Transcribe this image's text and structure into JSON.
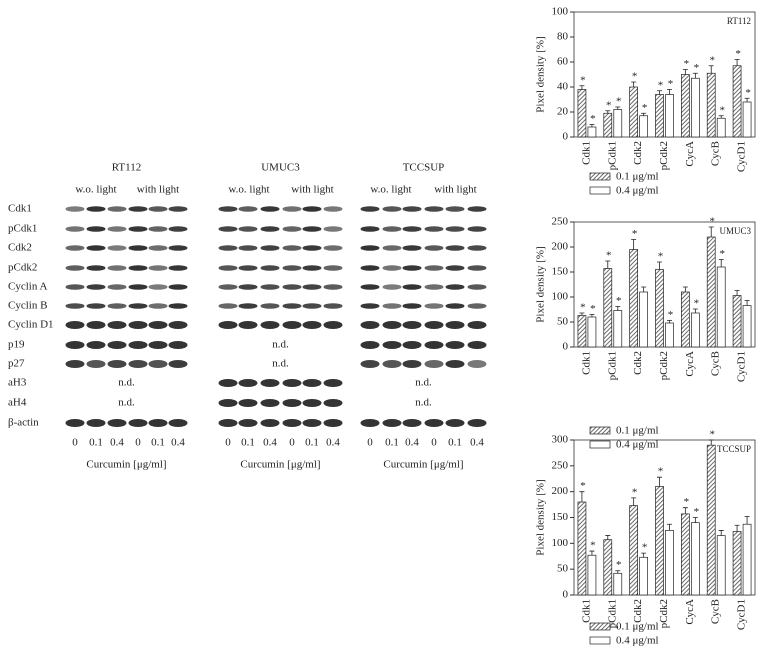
{
  "blot": {
    "row_labels": [
      "Cdk1",
      "pCdk1",
      "Cdk2",
      "pCdk2",
      "Cyclin A",
      "Cyclin B",
      "Cyclin D1",
      "p19",
      "p27",
      "aH3",
      "aH4",
      "β-actin"
    ],
    "panels": [
      {
        "title": "RT112",
        "conditions": [
          "w.o. light",
          "with light"
        ],
        "lanes": [
          "0",
          "0.1",
          "0.4",
          "0",
          "0.1",
          "0.4"
        ],
        "xlabel": "Curcumin [μg/ml]",
        "rows": [
          null,
          null,
          null,
          null,
          null,
          null,
          null,
          null,
          null,
          "n.d.",
          "n.d.",
          null
        ]
      },
      {
        "title": "UMUC3",
        "conditions": [
          "w.o. light",
          "with light"
        ],
        "lanes": [
          "0",
          "0.1",
          "0.4",
          "0",
          "0.1",
          "0.4"
        ],
        "xlabel": "Curcumin [μg/ml]",
        "rows": [
          null,
          null,
          null,
          null,
          null,
          null,
          null,
          "n.d.",
          "n.d.",
          null,
          null,
          null
        ]
      },
      {
        "title": "TCCSUP",
        "conditions": [
          "w.o. light",
          "with light"
        ],
        "lanes": [
          "0",
          "0.1",
          "0.4",
          "0",
          "0.1",
          "0.4"
        ],
        "xlabel": "Curcumin [μg/ml]",
        "rows": [
          null,
          null,
          null,
          null,
          null,
          null,
          null,
          null,
          null,
          "n.d.",
          "n.d.",
          null
        ]
      }
    ]
  },
  "chart_data": [
    {
      "type": "bar",
      "title": "RT112",
      "ylabel": "Pixel density [%]",
      "categories": [
        "Cdk1",
        "pCdk1",
        "Cdk2",
        "pCdk2",
        "CycA",
        "CycB",
        "CycD1"
      ],
      "ylim": [
        0,
        100
      ],
      "yticks": [
        0,
        20,
        40,
        60,
        80,
        100
      ],
      "series": [
        {
          "name": "0.1 μg/ml",
          "color": "#6a6a6a",
          "values": [
            38,
            19,
            40,
            34,
            50,
            51,
            57
          ],
          "errors": [
            3,
            2,
            4,
            3,
            4,
            6,
            5
          ],
          "markers": [
            "*",
            "*",
            "*",
            "*",
            "*",
            "*",
            "*"
          ]
        },
        {
          "name": "0.4 μg/ml",
          "color": "#ffffff",
          "values": [
            8,
            22,
            17,
            34,
            47,
            15,
            28
          ],
          "errors": [
            2,
            2,
            2,
            4,
            4,
            2,
            3
          ],
          "markers": [
            "*",
            "*",
            "*",
            "*",
            "*",
            "*",
            "*"
          ]
        }
      ]
    },
    {
      "type": "bar",
      "title": "UMUC3",
      "ylabel": "Pixel density [%]",
      "categories": [
        "Cdk1",
        "pCdk1",
        "Cdk2",
        "pCdk2",
        "CycA",
        "CycB",
        "CycD1"
      ],
      "ylim": [
        0,
        250
      ],
      "yticks": [
        0,
        50,
        100,
        150,
        200,
        250
      ],
      "series": [
        {
          "name": "0.1 μg/ml",
          "color": "#6a6a6a",
          "values": [
            63,
            157,
            195,
            155,
            110,
            220,
            103
          ],
          "errors": [
            5,
            15,
            20,
            15,
            10,
            20,
            10
          ],
          "markers": [
            "*",
            "*",
            "*",
            "*",
            null,
            "*",
            null
          ]
        },
        {
          "name": "0.4 μg/ml",
          "color": "#ffffff",
          "values": [
            60,
            73,
            110,
            48,
            68,
            160,
            83
          ],
          "errors": [
            5,
            8,
            10,
            5,
            8,
            15,
            10
          ],
          "markers": [
            "*",
            "*",
            null,
            "*",
            "*",
            "*",
            null
          ]
        }
      ]
    },
    {
      "type": "bar",
      "title": "TCCSUP",
      "ylabel": "Pixel density [%]",
      "categories": [
        "Cdk1",
        "pCdk1",
        "Cdk2",
        "pCdk2",
        "CycA",
        "CycB",
        "CycD1"
      ],
      "ylim": [
        0,
        300
      ],
      "yticks": [
        0,
        50,
        100,
        150,
        200,
        250,
        300
      ],
      "series": [
        {
          "name": "0.1 μg/ml",
          "color": "#6a6a6a",
          "values": [
            180,
            107,
            173,
            210,
            157,
            290,
            123
          ],
          "errors": [
            20,
            8,
            15,
            18,
            12,
            10,
            12
          ],
          "markers": [
            "*",
            null,
            "*",
            "*",
            "*",
            "*",
            null
          ]
        },
        {
          "name": "0.4 μg/ml",
          "color": "#ffffff",
          "values": [
            77,
            42,
            73,
            125,
            140,
            115,
            137
          ],
          "errors": [
            8,
            5,
            8,
            12,
            10,
            10,
            15
          ],
          "markers": [
            "*",
            "*",
            "*",
            null,
            "*",
            null,
            null
          ]
        }
      ]
    }
  ]
}
